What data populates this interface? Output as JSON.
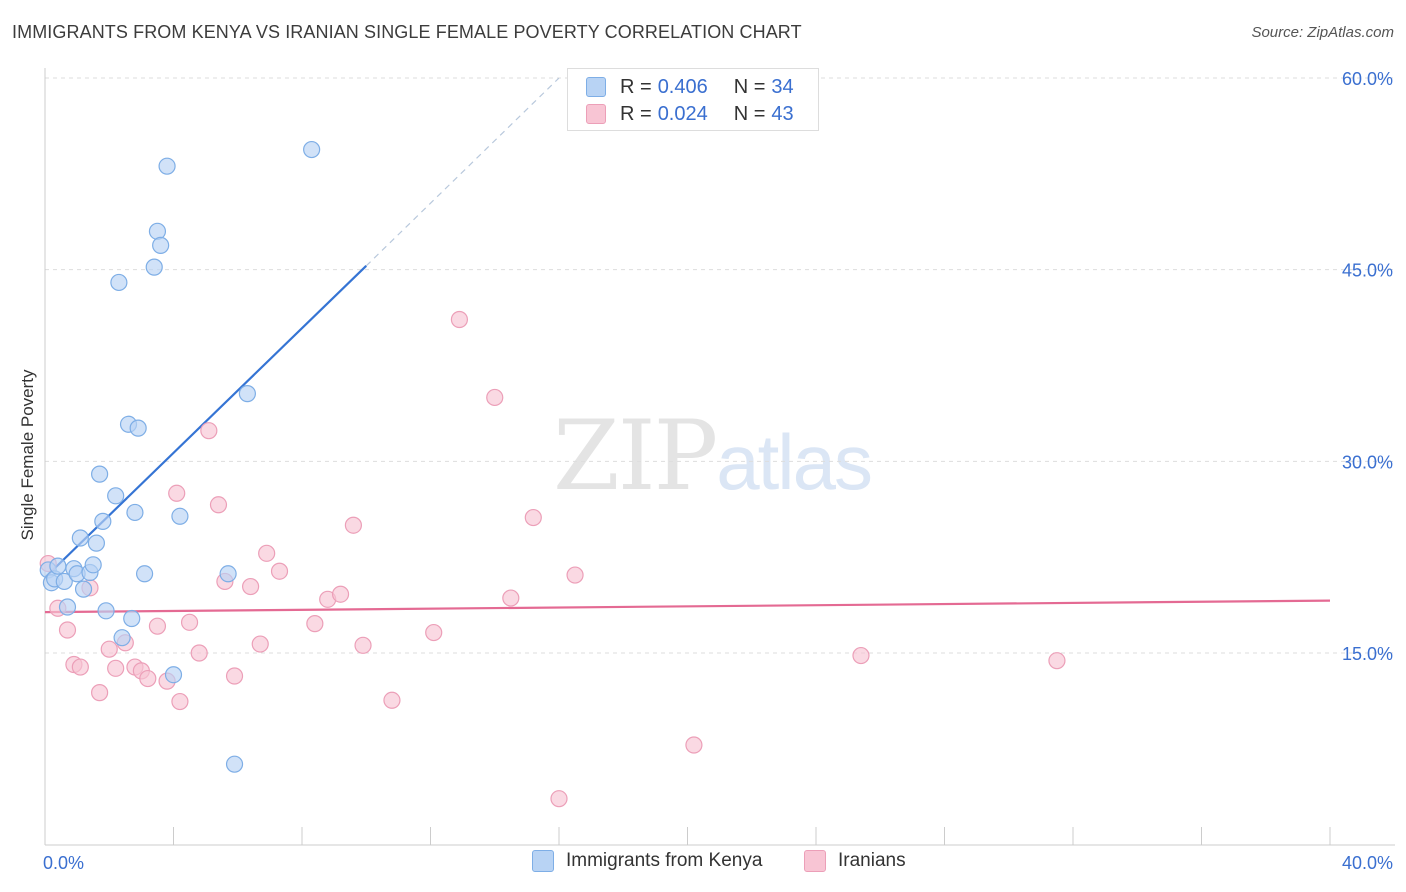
{
  "title": "IMMIGRANTS FROM KENYA VS IRANIAN SINGLE FEMALE POVERTY CORRELATION CHART",
  "source": "Source: ZipAtlas.com",
  "watermark": {
    "part1": "ZIP",
    "part2": "atlas"
  },
  "legend_top": {
    "series1": {
      "r_label": "R =",
      "r_value": "0.406",
      "n_label": "N =",
      "n_value": "34"
    },
    "series2": {
      "r_label": "R =",
      "r_value": "0.024",
      "n_label": "N =",
      "n_value": "43"
    }
  },
  "legend_bottom": {
    "series1": "Immigrants from Kenya",
    "series2": "Iranians"
  },
  "colors": {
    "kenya_fill": "#b8d3f4",
    "kenya_stroke": "#7eaee6",
    "kenya_line": "#3574d4",
    "iran_fill": "#f8c5d4",
    "iran_stroke": "#ec9fb8",
    "iran_line": "#e46a93",
    "axis_text": "#3a6fd0",
    "grid": "#dddddd"
  },
  "chart_data": {
    "type": "scatter",
    "title": "IMMIGRANTS FROM KENYA VS IRANIAN SINGLE FEMALE POVERTY CORRELATION CHART",
    "xlabel": "",
    "ylabel": "Single Female Poverty",
    "xlim": [
      0,
      40
    ],
    "ylim": [
      0,
      60
    ],
    "x_tick_labels": [
      "0.0%",
      "40.0%"
    ],
    "y_ticks": [
      15,
      30,
      45,
      60
    ],
    "y_tick_labels": [
      "15.0%",
      "30.0%",
      "45.0%",
      "60.0%"
    ],
    "series": [
      {
        "name": "Immigrants from Kenya",
        "R": 0.406,
        "N": 34,
        "trend": {
          "x0": 0.0,
          "y0": 20.9,
          "x1": 10.0,
          "y1": 45.3,
          "dash_to_x": 16.0,
          "dash_to_y": 60.0
        },
        "points": [
          [
            0.1,
            21.5
          ],
          [
            0.2,
            20.5
          ],
          [
            0.3,
            20.8
          ],
          [
            0.4,
            21.8
          ],
          [
            0.6,
            20.6
          ],
          [
            0.7,
            18.6
          ],
          [
            0.9,
            21.6
          ],
          [
            1.0,
            21.2
          ],
          [
            1.1,
            24.0
          ],
          [
            1.2,
            20.0
          ],
          [
            1.4,
            21.3
          ],
          [
            1.5,
            21.9
          ],
          [
            1.6,
            23.6
          ],
          [
            1.7,
            29.0
          ],
          [
            1.8,
            25.3
          ],
          [
            1.9,
            18.3
          ],
          [
            2.2,
            27.3
          ],
          [
            2.3,
            44.0
          ],
          [
            2.4,
            16.2
          ],
          [
            2.6,
            32.9
          ],
          [
            2.7,
            17.7
          ],
          [
            2.8,
            26.0
          ],
          [
            2.9,
            32.6
          ],
          [
            3.1,
            21.2
          ],
          [
            3.4,
            45.2
          ],
          [
            3.5,
            48.0
          ],
          [
            3.6,
            46.9
          ],
          [
            3.8,
            53.1
          ],
          [
            4.0,
            13.3
          ],
          [
            4.2,
            25.7
          ],
          [
            5.7,
            21.2
          ],
          [
            5.9,
            6.3
          ],
          [
            6.3,
            35.3
          ],
          [
            8.3,
            54.4
          ]
        ]
      },
      {
        "name": "Iranians",
        "R": 0.024,
        "N": 43,
        "trend": {
          "x0": 0.0,
          "y0": 18.2,
          "x1": 40.0,
          "y1": 19.1
        },
        "points": [
          [
            0.1,
            22.0
          ],
          [
            0.4,
            18.5
          ],
          [
            0.7,
            16.8
          ],
          [
            0.9,
            14.1
          ],
          [
            1.1,
            13.9
          ],
          [
            1.4,
            20.1
          ],
          [
            1.7,
            11.9
          ],
          [
            2.0,
            15.3
          ],
          [
            2.2,
            13.8
          ],
          [
            2.5,
            15.8
          ],
          [
            2.8,
            13.9
          ],
          [
            3.0,
            13.6
          ],
          [
            3.2,
            13.0
          ],
          [
            3.5,
            17.1
          ],
          [
            3.8,
            12.8
          ],
          [
            4.1,
            27.5
          ],
          [
            4.2,
            11.2
          ],
          [
            4.5,
            17.4
          ],
          [
            4.8,
            15.0
          ],
          [
            5.1,
            32.4
          ],
          [
            5.4,
            26.6
          ],
          [
            5.6,
            20.6
          ],
          [
            5.9,
            13.2
          ],
          [
            6.4,
            20.2
          ],
          [
            6.7,
            15.7
          ],
          [
            6.9,
            22.8
          ],
          [
            7.3,
            21.4
          ],
          [
            8.4,
            17.3
          ],
          [
            8.8,
            19.2
          ],
          [
            9.2,
            19.6
          ],
          [
            9.6,
            25.0
          ],
          [
            9.9,
            15.6
          ],
          [
            10.8,
            11.3
          ],
          [
            12.1,
            16.6
          ],
          [
            12.9,
            41.1
          ],
          [
            14.0,
            35.0
          ],
          [
            14.5,
            19.3
          ],
          [
            15.2,
            25.6
          ],
          [
            16.0,
            3.6
          ],
          [
            16.5,
            21.1
          ],
          [
            20.2,
            7.8
          ],
          [
            25.4,
            14.8
          ],
          [
            31.5,
            14.4
          ]
        ]
      }
    ]
  }
}
